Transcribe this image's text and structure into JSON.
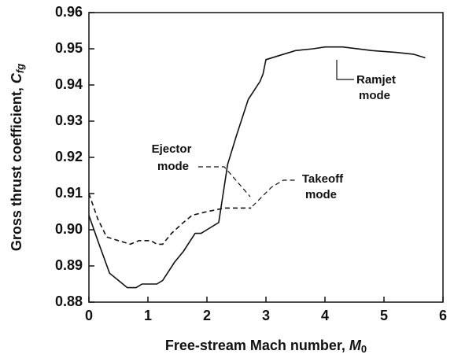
{
  "chart_data": {
    "type": "line",
    "xlabel": "Free-stream Mach number, ",
    "xlabel_symbol": "M",
    "xlabel_subscript": "0",
    "ylabel": "Gross thrust coefficient, ",
    "ylabel_symbol": "C",
    "ylabel_subscript": "fg",
    "xlim": [
      0,
      6
    ],
    "xticks": [
      0,
      1,
      2,
      3,
      4,
      5,
      6
    ],
    "ylim": [
      0.88,
      0.96
    ],
    "yticks": [
      0.88,
      0.89,
      {
        "value": 0.9,
        "label": "0.90"
      },
      0.91,
      0.92,
      0.93,
      0.94,
      0.95,
      0.96
    ],
    "series": [
      {
        "color": "#111111",
        "dash": "solid",
        "x": [
          0,
          0.15,
          0.35,
          0.5,
          0.65,
          0.8,
          0.9,
          1.0,
          1.15,
          1.25,
          1.45,
          1.6,
          1.8,
          1.9,
          2.0,
          2.2,
          2.35,
          2.5,
          2.7,
          2.9,
          2.95,
          3.0,
          3.2,
          3.5,
          3.8,
          4.0,
          4.3,
          4.8,
          5.2,
          5.5,
          5.7
        ],
        "values": [
          0.904,
          0.897,
          0.888,
          0.886,
          0.884,
          0.884,
          0.885,
          0.885,
          0.885,
          0.886,
          0.891,
          0.894,
          0.899,
          0.899,
          0.9,
          0.902,
          0.918,
          0.926,
          0.936,
          0.941,
          0.943,
          0.947,
          0.948,
          0.9495,
          0.95,
          0.9505,
          0.9505,
          0.9495,
          0.949,
          0.9485,
          0.9475
        ]
      },
      {
        "color": "#111111",
        "dash": "dashed",
        "x": [
          0,
          0.15,
          0.3,
          0.5,
          0.7,
          0.85,
          0.95,
          1.05,
          1.15,
          1.25,
          1.4,
          1.6,
          1.75,
          2.0,
          2.3,
          2.75
        ],
        "values": [
          0.91,
          0.903,
          0.898,
          0.897,
          0.896,
          0.897,
          0.897,
          0.897,
          0.896,
          0.896,
          0.899,
          0.902,
          0.904,
          0.905,
          0.906,
          0.906
        ]
      }
    ],
    "annotations": [
      "Ejector",
      "mode",
      "Ramjet",
      "mode",
      "Takeoff",
      "mode"
    ]
  }
}
